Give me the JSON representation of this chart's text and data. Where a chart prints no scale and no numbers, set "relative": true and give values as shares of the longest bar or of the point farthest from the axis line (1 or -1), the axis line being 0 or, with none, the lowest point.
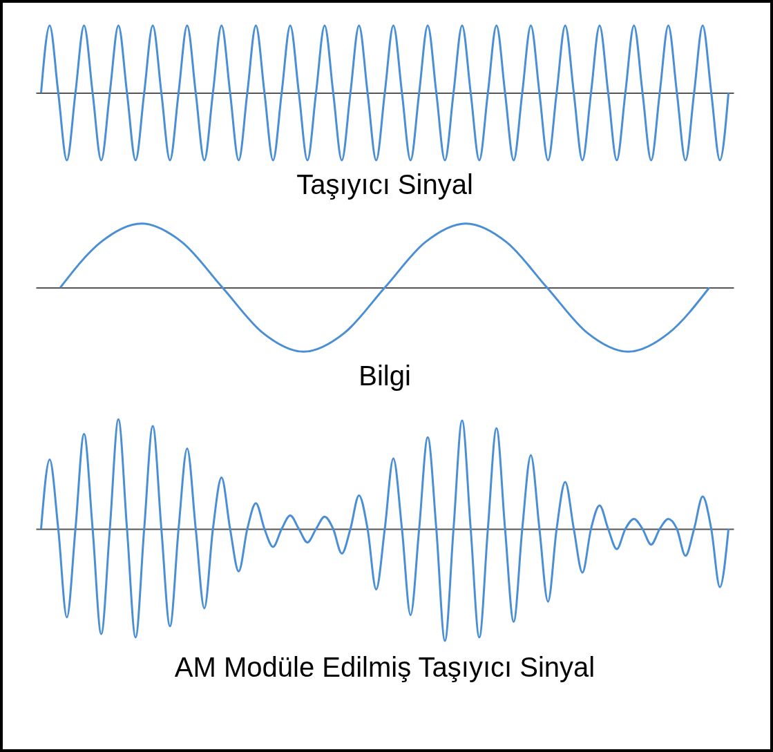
{
  "chart_data": [
    {
      "type": "line",
      "title": "Taşıyıcı Sinyal",
      "relative": true,
      "color": "#4a8fd6",
      "categories": [
        null,
        null,
        null,
        null,
        null,
        null,
        null,
        null,
        null,
        null,
        null,
        null,
        null,
        null,
        null,
        null,
        null,
        null,
        null,
        null,
        null,
        null,
        null,
        null,
        null,
        null,
        null,
        null,
        null,
        null,
        null,
        null,
        null,
        null,
        null,
        null,
        null,
        null,
        null,
        null,
        null,
        null,
        null,
        null,
        null,
        null,
        null,
        null,
        null,
        null,
        null,
        null,
        null,
        null,
        null,
        null,
        null,
        null,
        null,
        null,
        null,
        null,
        null,
        null,
        null,
        null,
        null,
        null,
        null,
        null,
        null,
        null,
        null,
        null,
        null,
        null,
        null,
        null,
        null,
        null,
        null
      ],
      "values": [
        0,
        1,
        0,
        -1,
        0,
        1,
        0,
        -1,
        0,
        1,
        0,
        -1,
        0,
        1,
        0,
        -1,
        0,
        1,
        0,
        -1,
        0,
        1,
        0,
        -1,
        0,
        1,
        0,
        -1,
        0,
        1,
        0,
        -1,
        0,
        1,
        0,
        -1,
        0,
        1,
        0,
        -1,
        0,
        1,
        0,
        -1,
        0,
        1,
        0,
        -1,
        0,
        1,
        0,
        -1,
        0,
        1,
        0,
        -1,
        0,
        1,
        0,
        -1,
        0,
        1,
        0,
        -1,
        0,
        1,
        0,
        -1,
        0,
        1,
        0,
        -1,
        0,
        1,
        0,
        -1,
        0,
        1,
        0,
        -1,
        0
      ]
    },
    {
      "type": "line",
      "title": "Bilgi",
      "relative": true,
      "color": "#4a8fd6",
      "categories": [
        null,
        null,
        null,
        null,
        null,
        null,
        null,
        null,
        null,
        null,
        null,
        null,
        null,
        null,
        null,
        null,
        null
      ],
      "values": [
        0,
        0.71,
        1,
        0.71,
        0,
        -0.71,
        -1,
        -0.71,
        0,
        0.71,
        1,
        0.71,
        0,
        -0.71,
        -1,
        -0.71,
        0
      ]
    },
    {
      "type": "line",
      "title": "AM Modüle Edilmiş Taşıyıcı Sinyal",
      "relative": true,
      "color": "#4a8fd6",
      "categories": [
        null,
        null,
        null,
        null,
        null,
        null,
        null,
        null,
        null,
        null,
        null,
        null,
        null,
        null,
        null,
        null,
        null,
        null,
        null,
        null,
        null,
        null,
        null,
        null,
        null,
        null,
        null,
        null,
        null,
        null,
        null,
        null,
        null,
        null,
        null,
        null,
        null,
        null,
        null,
        null,
        null,
        null,
        null,
        null,
        null,
        null,
        null,
        null,
        null,
        null,
        null,
        null,
        null,
        null,
        null,
        null,
        null,
        null,
        null,
        null,
        null,
        null,
        null,
        null,
        null,
        null,
        null,
        null,
        null,
        null,
        null,
        null,
        null,
        null,
        null,
        null,
        null,
        null,
        null,
        null,
        null
      ],
      "values": [
        0,
        0.62,
        0,
        -0.79,
        0,
        0.85,
        0,
        -0.94,
        0,
        0.98,
        0,
        -0.97,
        0,
        0.92,
        0,
        -0.87,
        0,
        0.72,
        0,
        -0.71,
        0,
        0.46,
        0,
        -0.38,
        0,
        0.23,
        0,
        -0.16,
        0,
        0.12,
        0,
        -0.12,
        0,
        0.11,
        0,
        -0.22,
        0,
        0.3,
        0,
        -0.54,
        0,
        0.63,
        0,
        -0.77,
        0,
        0.82,
        0,
        -1,
        0,
        0.97,
        0,
        -0.97,
        0,
        0.9,
        0,
        -0.83,
        0,
        0.66,
        0,
        -0.65,
        0,
        0.42,
        0,
        -0.39,
        0,
        0.21,
        0,
        -0.18,
        0,
        0.09,
        0,
        -0.14,
        0,
        0.09,
        0,
        -0.24,
        0,
        0.29,
        0,
        -0.52,
        0
      ]
    }
  ]
}
